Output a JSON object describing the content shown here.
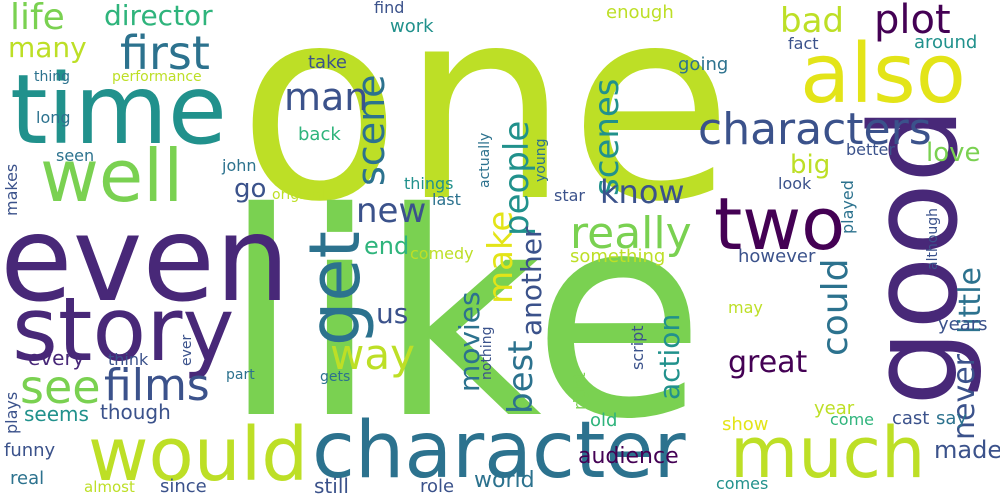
{
  "colors": {
    "yellow_green": "#bddf26",
    "green": "#7ad151",
    "yellow": "#e3e418",
    "teal": "#21918c",
    "blue_teal": "#2c728e",
    "slate_blue": "#3b528b",
    "indigo": "#482878",
    "deep_purple": "#440154",
    "sea_green": "#2fb47c",
    "light_green": "#5ec962"
  },
  "words": [
    {
      "id": "one",
      "text": "one",
      "color": "#bddf26"
    },
    {
      "id": "like",
      "text": "like",
      "color": "#7ad151"
    },
    {
      "id": "good",
      "text": "good",
      "color": "#482878"
    },
    {
      "id": "even",
      "text": "even",
      "color": "#482878"
    },
    {
      "id": "time",
      "text": "time",
      "color": "#21918c"
    },
    {
      "id": "character",
      "text": "character",
      "color": "#2c728e"
    },
    {
      "id": "story",
      "text": "story",
      "color": "#482878"
    },
    {
      "id": "would",
      "text": "would",
      "color": "#bddf26"
    },
    {
      "id": "much",
      "text": "much",
      "color": "#bddf26"
    },
    {
      "id": "also",
      "text": "also",
      "color": "#e3e418"
    },
    {
      "id": "two",
      "text": "two",
      "color": "#440154"
    },
    {
      "id": "well",
      "text": "well",
      "color": "#7ad151"
    },
    {
      "id": "get",
      "text": "get",
      "color": "#2c728e"
    },
    {
      "id": "characters",
      "text": "characters",
      "color": "#3b528b"
    },
    {
      "id": "films",
      "text": "films",
      "color": "#3b528b"
    },
    {
      "id": "see",
      "text": "see",
      "color": "#7ad151"
    },
    {
      "id": "first",
      "text": "first",
      "color": "#2c728e"
    },
    {
      "id": "plot",
      "text": "plot",
      "color": "#440154"
    },
    {
      "id": "scene",
      "text": "scene",
      "color": "#2c728e"
    },
    {
      "id": "way",
      "text": "way",
      "color": "#bddf26"
    },
    {
      "id": "bad",
      "text": "bad",
      "color": "#bddf26"
    },
    {
      "id": "man",
      "text": "man",
      "color": "#3b528b"
    },
    {
      "id": "life",
      "text": "life",
      "color": "#7ad151"
    },
    {
      "id": "really",
      "text": "really",
      "color": "#7ad151"
    },
    {
      "id": "could",
      "text": "could",
      "color": "#2c728e"
    },
    {
      "id": "make",
      "text": "make",
      "color": "#e3e418"
    },
    {
      "id": "people",
      "text": "people",
      "color": "#21918c"
    },
    {
      "id": "scenes",
      "text": "scenes",
      "color": "#21918c"
    },
    {
      "id": "new",
      "text": "new",
      "color": "#3b528b"
    },
    {
      "id": "best",
      "text": "best",
      "color": "#2c728e"
    },
    {
      "id": "little",
      "text": "little",
      "color": "#2c728e"
    },
    {
      "id": "never",
      "text": "never",
      "color": "#3b528b"
    },
    {
      "id": "know",
      "text": "know",
      "color": "#3b528b"
    },
    {
      "id": "movies",
      "text": "movies",
      "color": "#2c728e"
    },
    {
      "id": "action",
      "text": "action",
      "color": "#21918c"
    },
    {
      "id": "great",
      "text": "great",
      "color": "#440154"
    },
    {
      "id": "many",
      "text": "many",
      "color": "#bddf26"
    },
    {
      "id": "director",
      "text": "director",
      "color": "#2fb47c"
    },
    {
      "id": "another",
      "text": "another",
      "color": "#3b528b"
    },
    {
      "id": "us",
      "text": "us",
      "color": "#3b528b"
    },
    {
      "id": "big",
      "text": "big",
      "color": "#bddf26"
    },
    {
      "id": "love",
      "text": "love",
      "color": "#7ad151"
    },
    {
      "id": "end",
      "text": "end",
      "color": "#2fb47c"
    },
    {
      "id": "go",
      "text": "go",
      "color": "#3b528b"
    },
    {
      "id": "made",
      "text": "made",
      "color": "#3b528b"
    },
    {
      "id": "audience",
      "text": "audience",
      "color": "#440154"
    },
    {
      "id": "world",
      "text": "world",
      "color": "#2c728e"
    },
    {
      "id": "though",
      "text": "though",
      "color": "#3b528b"
    },
    {
      "id": "seems",
      "text": "seems",
      "color": "#21918c"
    },
    {
      "id": "every",
      "text": "every",
      "color": "#482878"
    },
    {
      "id": "still",
      "text": "still",
      "color": "#3b528b"
    },
    {
      "id": "funny",
      "text": "funny",
      "color": "#3b528b"
    },
    {
      "id": "real",
      "text": "real",
      "color": "#2c728e"
    },
    {
      "id": "almost",
      "text": "almost",
      "color": "#bddf26"
    },
    {
      "id": "since",
      "text": "since",
      "color": "#3b528b"
    },
    {
      "id": "role",
      "text": "role",
      "color": "#3b528b"
    },
    {
      "id": "comes",
      "text": "comes",
      "color": "#21918c"
    },
    {
      "id": "old",
      "text": "old",
      "color": "#2fb47c"
    },
    {
      "id": "show",
      "text": "show",
      "color": "#e3e418"
    },
    {
      "id": "year",
      "text": "year",
      "color": "#bddf26"
    },
    {
      "id": "come",
      "text": "come",
      "color": "#2fb47c"
    },
    {
      "id": "cast",
      "text": "cast",
      "color": "#3b528b"
    },
    {
      "id": "say",
      "text": "say",
      "color": "#2c728e"
    },
    {
      "id": "years",
      "text": "years",
      "color": "#3b528b"
    },
    {
      "id": "may",
      "text": "may",
      "color": "#bddf26"
    },
    {
      "id": "however",
      "text": "however",
      "color": "#3b528b"
    },
    {
      "id": "something",
      "text": "something",
      "color": "#bddf26"
    },
    {
      "id": "comedy",
      "text": "comedy",
      "color": "#bddf26"
    },
    {
      "id": "last",
      "text": "last",
      "color": "#2c728e"
    },
    {
      "id": "things",
      "text": "things",
      "color": "#21918c"
    },
    {
      "id": "original",
      "text": "original",
      "color": "#bddf26"
    },
    {
      "id": "john",
      "text": "john",
      "color": "#2c728e"
    },
    {
      "id": "seen",
      "text": "seen",
      "color": "#2c728e"
    },
    {
      "id": "long",
      "text": "long",
      "color": "#2c728e"
    },
    {
      "id": "thing",
      "text": "thing",
      "color": "#2c728e"
    },
    {
      "id": "performance",
      "text": "performance",
      "color": "#bddf26"
    },
    {
      "id": "take",
      "text": "take",
      "color": "#3b528b"
    },
    {
      "id": "back",
      "text": "back",
      "color": "#2fb47c"
    },
    {
      "id": "work",
      "text": "work",
      "color": "#21918c"
    },
    {
      "id": "find",
      "text": "find",
      "color": "#3b528b"
    },
    {
      "id": "enough",
      "text": "enough",
      "color": "#bddf26"
    },
    {
      "id": "going",
      "text": "going",
      "color": "#2c728e"
    },
    {
      "id": "fact",
      "text": "fact",
      "color": "#3b528b"
    },
    {
      "id": "around",
      "text": "around",
      "color": "#21918c"
    },
    {
      "id": "better",
      "text": "better",
      "color": "#3b528b"
    },
    {
      "id": "look",
      "text": "look",
      "color": "#3b528b"
    },
    {
      "id": "star",
      "text": "star",
      "color": "#3b528b"
    },
    {
      "id": "makes",
      "text": "makes",
      "color": "#3b528b"
    },
    {
      "id": "think",
      "text": "think",
      "color": "#3b528b"
    },
    {
      "id": "part",
      "text": "part",
      "color": "#2c728e"
    },
    {
      "id": "gets",
      "text": "gets",
      "color": "#2c728e"
    },
    {
      "id": "plays",
      "text": "plays",
      "color": "#3b528b"
    },
    {
      "id": "actually",
      "text": "actually",
      "color": "#2c728e"
    },
    {
      "id": "young",
      "text": "young",
      "color": "#2c728e"
    },
    {
      "id": "ever",
      "text": "ever",
      "color": "#3b528b"
    },
    {
      "id": "nothing",
      "text": "nothing",
      "color": "#3b528b"
    },
    {
      "id": "script",
      "text": "script",
      "color": "#3b528b"
    },
    {
      "id": "right",
      "text": "right",
      "color": "#7ad151"
    },
    {
      "id": "played",
      "text": "played",
      "color": "#2c728e"
    },
    {
      "id": "although",
      "text": "although",
      "color": "#3b528b"
    }
  ]
}
